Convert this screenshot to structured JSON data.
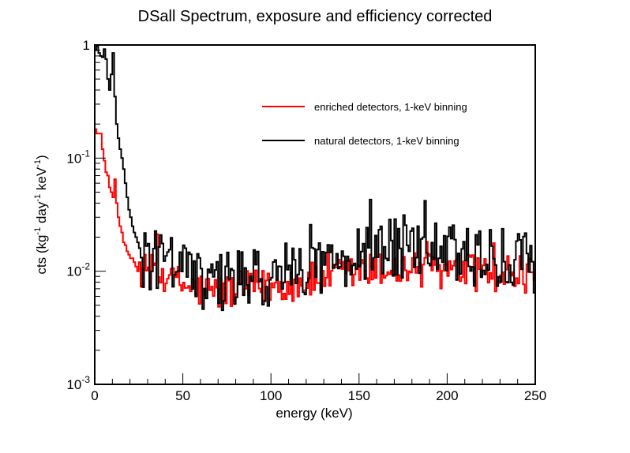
{
  "chart_data": {
    "type": "line",
    "title": "DSall Spectrum, exposure and efficiency corrected",
    "xlabel": "energy (keV)",
    "ylabel": {
      "prefix": "cts (kg",
      "sup1": "-1",
      "middle": " day",
      "sup2": "-1",
      "middle2": " keV",
      "sup3": "-1",
      "suffix": ")"
    },
    "xlim": [
      0,
      250
    ],
    "ylim": [
      0.001,
      1
    ],
    "yscale": "log",
    "x_ticks": [
      "0",
      "50",
      "100",
      "150",
      "200",
      "250"
    ],
    "y_ticks": [
      {
        "base": "10",
        "exp": "-3",
        "value": 0.001
      },
      {
        "base": "10",
        "exp": "-2",
        "value": 0.01
      },
      {
        "base": "10",
        "exp": "-1",
        "value": 0.1
      },
      {
        "base": "1",
        "exp": "",
        "value": 1
      }
    ],
    "legend_position": "top-right",
    "series": [
      {
        "name": "enriched detectors, 1-keV binning",
        "color": "#ff0000",
        "bins": [
          [
            0,
            1,
            0.18
          ],
          [
            1,
            4,
            0.165
          ],
          [
            4,
            5,
            0.12
          ],
          [
            5,
            6,
            0.095
          ],
          [
            6,
            7,
            0.075
          ],
          [
            7,
            8,
            0.07
          ],
          [
            8,
            9,
            0.055
          ],
          [
            9,
            10,
            0.05
          ],
          [
            10,
            11,
            0.045
          ],
          [
            11,
            12,
            0.065
          ],
          [
            12,
            13,
            0.04
          ],
          [
            13,
            14,
            0.03
          ],
          [
            14,
            15,
            0.025
          ],
          [
            15,
            16,
            0.022
          ],
          [
            16,
            17,
            0.018
          ],
          [
            17,
            18,
            0.017
          ],
          [
            18,
            19,
            0.015
          ],
          [
            19,
            20,
            0.014
          ],
          [
            20,
            21,
            0.013
          ],
          [
            21,
            22,
            0.013
          ],
          [
            22,
            23,
            0.012
          ],
          [
            23,
            24,
            0.011
          ],
          [
            24,
            25,
            0.01
          ],
          [
            25,
            26,
            0.012
          ]
        ],
        "tail_start": 26,
        "tail_end": 250,
        "tail_profile": [
          [
            26,
            0.0105
          ],
          [
            40,
            0.009
          ],
          [
            50,
            0.0075
          ],
          [
            60,
            0.0068
          ],
          [
            70,
            0.0065
          ],
          [
            80,
            0.0068
          ],
          [
            95,
            0.0072
          ],
          [
            110,
            0.0078
          ],
          [
            130,
            0.0085
          ],
          [
            150,
            0.0098
          ],
          [
            170,
            0.0105
          ],
          [
            190,
            0.0102
          ],
          [
            210,
            0.0098
          ],
          [
            230,
            0.0095
          ],
          [
            250,
            0.0088
          ]
        ]
      },
      {
        "name": "natural detectors, 1-keV binning",
        "color": "#000000",
        "bins": [
          [
            0,
            1,
            0.9
          ],
          [
            1,
            2,
            0.98
          ],
          [
            2,
            3,
            0.85
          ],
          [
            3,
            4,
            0.8
          ],
          [
            4,
            5,
            0.78
          ],
          [
            5,
            6,
            0.92
          ],
          [
            6,
            7,
            0.75
          ],
          [
            7,
            8,
            0.5
          ],
          [
            8,
            9,
            0.4
          ],
          [
            9,
            10,
            0.55
          ],
          [
            10,
            11,
            0.85
          ],
          [
            11,
            12,
            0.35
          ],
          [
            12,
            13,
            0.2
          ],
          [
            13,
            14,
            0.15
          ],
          [
            14,
            15,
            0.12
          ],
          [
            15,
            16,
            0.1
          ],
          [
            16,
            17,
            0.08
          ],
          [
            17,
            18,
            0.06
          ],
          [
            18,
            19,
            0.045
          ],
          [
            19,
            20,
            0.035
          ],
          [
            20,
            21,
            0.03
          ],
          [
            21,
            22,
            0.025
          ],
          [
            22,
            23,
            0.022
          ],
          [
            23,
            24,
            0.02
          ],
          [
            24,
            25,
            0.018
          ],
          [
            25,
            26,
            0.016
          ]
        ],
        "tail_start": 26,
        "tail_end": 250,
        "tail_profile": [
          [
            26,
            0.013
          ],
          [
            40,
            0.012
          ],
          [
            50,
            0.0105
          ],
          [
            60,
            0.0085
          ],
          [
            70,
            0.008
          ],
          [
            80,
            0.0082
          ],
          [
            95,
            0.0085
          ],
          [
            110,
            0.0105
          ],
          [
            130,
            0.012
          ],
          [
            150,
            0.014
          ],
          [
            170,
            0.016
          ],
          [
            190,
            0.015
          ],
          [
            210,
            0.014
          ],
          [
            230,
            0.013
          ],
          [
            250,
            0.0115
          ]
        ]
      }
    ]
  }
}
